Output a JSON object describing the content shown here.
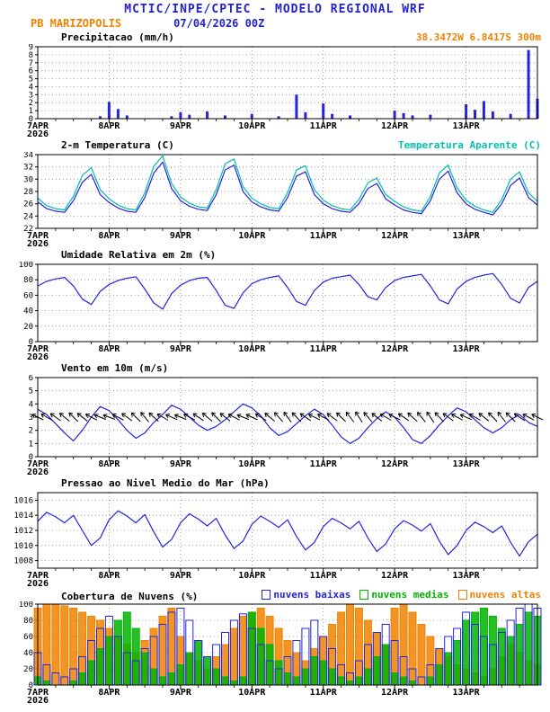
{
  "header": {
    "title": "MCTIC/INPE/CPTEC - MODELO REGIONAL WRF",
    "station": "PB MARIZOPOLIS",
    "run": "07/04/2026 00Z",
    "location": "38.3472W 6.8417S 300m"
  },
  "colors": {
    "titleblue": "#2222c8",
    "blue": "#2424dc",
    "cyan": "#00bfae",
    "green": "#00b400",
    "orange": "#f08200",
    "grid": "#8a8a8a",
    "black": "#000000"
  },
  "x_axis": {
    "hours_step": 3,
    "total_hours": 168,
    "start_label": "7APR",
    "year_label": "2026",
    "day_labels": [
      "8APR",
      "9APR",
      "10APR",
      "11APR",
      "12APR",
      "13APR"
    ],
    "day_hours": [
      24,
      48,
      72,
      96,
      120,
      144
    ]
  },
  "chart_data": [
    {
      "id": "precipitation",
      "type": "bar",
      "title": "Precipitacao (mm/h)",
      "ylim": [
        0,
        9
      ],
      "yticks": [
        0,
        1,
        2,
        3,
        4,
        5,
        6,
        7,
        8,
        9
      ],
      "series": [
        {
          "name": "precipitacao",
          "color_key": "blue",
          "values": [
            0,
            0,
            0,
            0,
            0,
            0,
            0,
            0.3,
            2.1,
            1.2,
            0.4,
            0,
            0,
            0,
            0,
            0.3,
            0.8,
            0.5,
            0,
            0.9,
            0,
            0.4,
            0,
            0,
            0.6,
            0,
            0,
            0.3,
            0,
            3.0,
            0.8,
            0,
            1.9,
            0.6,
            0,
            0.4,
            0,
            0,
            0,
            0,
            1.0,
            0.7,
            0.4,
            0,
            0.5,
            0,
            0,
            0,
            1.8,
            1.1,
            2.2,
            0.9,
            0,
            0.6,
            0,
            8.6,
            2.5
          ]
        }
      ]
    },
    {
      "id": "temperature",
      "type": "line",
      "title": "2-m Temperatura (C)",
      "right_label": "Temperatura Aparente (C)",
      "ylim": [
        22,
        34
      ],
      "yticks": [
        22,
        24,
        26,
        28,
        30,
        32,
        34
      ],
      "series": [
        {
          "name": "temperatura-2m",
          "color_key": "blue",
          "values": [
            26.3,
            25.2,
            24.8,
            24.6,
            26.5,
            29.5,
            30.8,
            27.5,
            26.2,
            25.3,
            24.8,
            24.6,
            27.0,
            31.0,
            32.8,
            28.5,
            26.5,
            25.6,
            25.1,
            24.9,
            27.5,
            31.5,
            32.3,
            28.0,
            26.3,
            25.5,
            25.0,
            24.8,
            27.0,
            30.5,
            31.2,
            27.5,
            26.0,
            25.2,
            24.8,
            24.6,
            26.0,
            28.5,
            29.3,
            26.8,
            25.8,
            25.0,
            24.6,
            24.4,
            26.5,
            30.0,
            31.3,
            27.8,
            26.0,
            25.1,
            24.6,
            24.2,
            26.0,
            29.0,
            30.2,
            27.0,
            25.8
          ]
        },
        {
          "name": "temperatura-aparente",
          "color_key": "cyan",
          "values": [
            26.9,
            25.7,
            25.2,
            25.0,
            27.2,
            30.6,
            31.9,
            28.3,
            26.8,
            25.8,
            25.2,
            25.0,
            27.8,
            32.1,
            33.8,
            29.3,
            27.1,
            26.1,
            25.5,
            25.3,
            28.3,
            32.5,
            33.3,
            28.8,
            26.9,
            26.0,
            25.4,
            25.2,
            27.8,
            31.5,
            32.2,
            28.3,
            26.6,
            25.7,
            25.2,
            25.0,
            26.7,
            29.4,
            30.2,
            27.5,
            26.4,
            25.5,
            25.0,
            24.8,
            27.2,
            31.0,
            32.3,
            28.6,
            26.6,
            25.6,
            25.0,
            24.6,
            26.7,
            30.0,
            31.2,
            27.8,
            26.4
          ]
        }
      ]
    },
    {
      "id": "relative-humidity",
      "type": "line",
      "title": "Umidade Relativa em 2m (%)",
      "ylim": [
        0,
        100
      ],
      "yticks": [
        0,
        20,
        40,
        60,
        80,
        100
      ],
      "series": [
        {
          "name": "umidade-relativa",
          "color_key": "blue",
          "values": [
            72,
            78,
            81,
            83,
            72,
            55,
            48,
            65,
            74,
            79,
            82,
            84,
            68,
            50,
            42,
            62,
            73,
            79,
            82,
            83,
            66,
            47,
            43,
            63,
            75,
            80,
            83,
            85,
            70,
            52,
            47,
            66,
            77,
            82,
            84,
            86,
            74,
            58,
            54,
            70,
            79,
            83,
            85,
            87,
            72,
            54,
            49,
            68,
            78,
            83,
            86,
            88,
            74,
            56,
            50,
            70,
            78
          ]
        }
      ]
    },
    {
      "id": "wind-10m",
      "type": "line",
      "title": "Vento em 10m (m/s)",
      "ylim": [
        0,
        6
      ],
      "yticks": [
        0,
        1,
        2,
        3,
        4,
        5,
        6
      ],
      "series": [
        {
          "name": "vento-velocidade",
          "color_key": "blue",
          "values": [
            3.6,
            3.2,
            2.5,
            1.8,
            1.2,
            2.0,
            3.0,
            3.8,
            3.5,
            2.8,
            2.0,
            1.4,
            1.8,
            2.6,
            3.2,
            3.9,
            3.6,
            3.0,
            2.4,
            2.0,
            2.3,
            2.8,
            3.4,
            4.0,
            3.7,
            3.1,
            2.2,
            1.6,
            1.9,
            2.5,
            3.1,
            3.6,
            3.2,
            2.4,
            1.5,
            1.0,
            1.4,
            2.2,
            2.9,
            3.4,
            3.0,
            2.2,
            1.3,
            1.0,
            1.6,
            2.4,
            3.1,
            3.7,
            3.4,
            2.8,
            2.2,
            1.8,
            2.2,
            2.8,
            3.2,
            2.6,
            2.3
          ]
        }
      ],
      "barbs": {
        "y": 3,
        "directions": [
          115,
          120,
          125,
          130,
          135,
          128,
          118,
          112,
          110,
          118,
          126,
          134,
          140,
          132,
          120,
          114,
          112,
          118,
          124,
          130,
          136,
          128,
          118,
          112,
          115,
          122,
          130,
          138,
          144,
          136,
          124,
          116,
          118,
          126,
          134,
          142,
          148,
          140,
          128,
          120,
          116,
          124,
          132,
          140,
          146,
          138,
          126,
          118,
          114,
          120,
          128,
          136,
          142,
          134,
          124,
          118,
          116
        ]
      }
    },
    {
      "id": "mslp",
      "type": "line",
      "title": "Pressao ao Nivel Medio do Mar (hPa)",
      "ylim": [
        1007,
        1017
      ],
      "yticks": [
        1008,
        1010,
        1012,
        1014,
        1016
      ],
      "series": [
        {
          "name": "pressao",
          "color_key": "blue",
          "values": [
            1013.2,
            1014.4,
            1013.8,
            1013.0,
            1014.0,
            1012.0,
            1010.0,
            1011.0,
            1013.4,
            1014.6,
            1013.9,
            1013.0,
            1014.1,
            1011.8,
            1009.8,
            1010.8,
            1013.0,
            1014.2,
            1013.5,
            1012.6,
            1013.6,
            1011.4,
            1009.6,
            1010.6,
            1012.8,
            1013.9,
            1013.2,
            1012.4,
            1013.4,
            1011.2,
            1009.4,
            1010.4,
            1012.5,
            1013.6,
            1013.0,
            1012.2,
            1013.2,
            1011.0,
            1009.2,
            1010.2,
            1012.2,
            1013.3,
            1012.7,
            1011.9,
            1012.9,
            1010.6,
            1008.8,
            1010.0,
            1012.0,
            1013.1,
            1012.5,
            1011.7,
            1012.6,
            1010.4,
            1008.6,
            1010.5,
            1011.5
          ]
        }
      ]
    },
    {
      "id": "cloud-cover",
      "type": "bar-multi",
      "title": "Cobertura de Nuvens (%)",
      "legend": [
        {
          "label": "nuvens baixas",
          "color_key": "blue"
        },
        {
          "label": "nuvens medias",
          "color_key": "green"
        },
        {
          "label": "nuvens altas",
          "color_key": "orange"
        }
      ],
      "ylim": [
        0,
        100
      ],
      "yticks": [
        0,
        20,
        40,
        60,
        80,
        100
      ],
      "series": [
        {
          "name": "nuvens-altas",
          "color_key": "orange",
          "fill": "solid",
          "values": [
            95,
            100,
            100,
            98,
            95,
            90,
            85,
            80,
            70,
            60,
            50,
            40,
            55,
            70,
            85,
            95,
            60,
            40,
            30,
            20,
            35,
            50,
            70,
            85,
            90,
            95,
            85,
            70,
            55,
            40,
            30,
            45,
            60,
            75,
            90,
            100,
            95,
            80,
            65,
            50,
            95,
            100,
            90,
            75,
            60,
            45,
            35,
            25,
            20,
            15,
            10,
            20,
            35,
            50,
            40,
            30,
            25
          ]
        },
        {
          "name": "nuvens-medias",
          "color_key": "green",
          "fill": "solid",
          "values": [
            10,
            5,
            0,
            0,
            5,
            15,
            30,
            45,
            60,
            80,
            90,
            70,
            40,
            20,
            10,
            15,
            25,
            40,
            55,
            35,
            20,
            10,
            5,
            10,
            90,
            70,
            50,
            30,
            15,
            10,
            20,
            35,
            30,
            20,
            10,
            5,
            10,
            20,
            35,
            50,
            15,
            10,
            5,
            0,
            10,
            25,
            40,
            55,
            80,
            90,
            95,
            85,
            70,
            60,
            75,
            90,
            85
          ]
        },
        {
          "name": "nuvens-baixas",
          "color_key": "blue",
          "fill": "none",
          "values": [
            40,
            25,
            15,
            10,
            20,
            35,
            55,
            70,
            85,
            60,
            40,
            30,
            45,
            60,
            75,
            90,
            95,
            80,
            55,
            35,
            50,
            65,
            80,
            88,
            70,
            50,
            30,
            20,
            35,
            55,
            70,
            80,
            60,
            45,
            25,
            15,
            30,
            50,
            65,
            75,
            55,
            35,
            20,
            10,
            25,
            45,
            60,
            70,
            90,
            75,
            60,
            50,
            65,
            80,
            95,
            100,
            95
          ]
        }
      ]
    }
  ]
}
